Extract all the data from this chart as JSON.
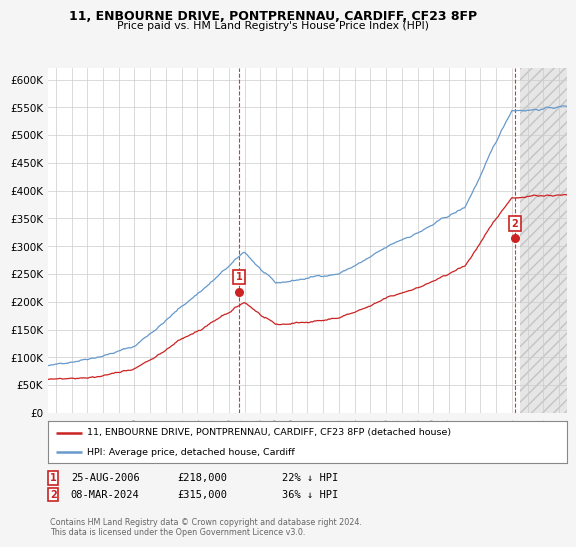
{
  "title": "11, ENBOURNE DRIVE, PONTPRENNAU, CARDIFF, CF23 8FP",
  "subtitle": "Price paid vs. HM Land Registry's House Price Index (HPI)",
  "legend_line1": "11, ENBOURNE DRIVE, PONTPRENNAU, CARDIFF, CF23 8FP (detached house)",
  "legend_line2": "HPI: Average price, detached house, Cardiff",
  "marker1_date": "25-AUG-2006",
  "marker1_price": 218000,
  "marker1_hpi_pct": "22% ↓ HPI",
  "marker1_year": 2006.65,
  "marker2_date": "08-MAR-2024",
  "marker2_price": 315000,
  "marker2_hpi_pct": "36% ↓ HPI",
  "marker2_year": 2024.19,
  "hpi_color": "#6699cc",
  "price_color": "#cc2222",
  "background_color": "#f5f5f5",
  "plot_bg_color": "#ffffff",
  "grid_color": "#cccccc",
  "copyright_text": "Contains HM Land Registry data © Crown copyright and database right 2024.\nThis data is licensed under the Open Government Licence v3.0.",
  "ylim": [
    0,
    620000
  ],
  "xlim_start": 1994.5,
  "xlim_end": 2027.5,
  "yticks": [
    0,
    50000,
    100000,
    150000,
    200000,
    250000,
    300000,
    350000,
    400000,
    450000,
    500000,
    550000,
    600000
  ],
  "ytick_labels": [
    "£0",
    "£50K",
    "£100K",
    "£150K",
    "£200K",
    "£250K",
    "£300K",
    "£350K",
    "£400K",
    "£450K",
    "£500K",
    "£550K",
    "£600K"
  ],
  "xticks": [
    1995,
    1996,
    1997,
    1998,
    1999,
    2000,
    2001,
    2002,
    2003,
    2004,
    2005,
    2006,
    2007,
    2008,
    2009,
    2010,
    2011,
    2012,
    2013,
    2014,
    2015,
    2016,
    2017,
    2018,
    2019,
    2020,
    2021,
    2022,
    2023,
    2024,
    2025,
    2026,
    2027
  ],
  "hatch_start": 2024.5,
  "hatch_color": "#e0e0e0"
}
